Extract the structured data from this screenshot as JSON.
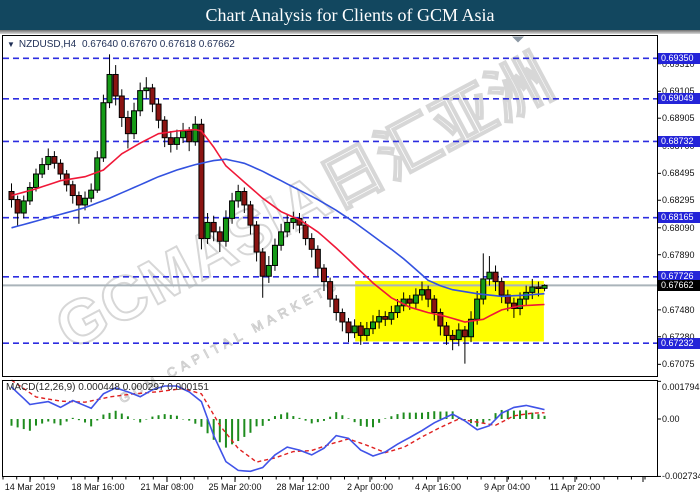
{
  "window": {
    "title": "Chart Analysis for Clients of GCM Asia"
  },
  "chart_header": {
    "collapse_icon": "▼",
    "symbol": "NZDUSD,H4",
    "ohlc": "0.67640 0.67670 0.67618 0.67662"
  },
  "watermark": {
    "big": "GCMASIA日汇亚洲",
    "small": "GCM CAPITAL MARKETS"
  },
  "macd_header": "MACD(12,26,9) 0.000448 0.000297 0.000151",
  "colors": {
    "title_bg": "#12475f",
    "up": "#169b17",
    "down": "#8b1412",
    "wick": "#000000",
    "ma_fast": "#f01838",
    "ma_slow": "#3352e0",
    "level_line": "#2d2de0",
    "level_label_bg": "#2424d8",
    "current_label_bg": "#000000",
    "current_line": "#aab4ba",
    "macd_line": "#4053e8",
    "macd_signal": "#e02020",
    "macd_hist": "#1e8c1e",
    "rectangle_fill": "#ffff00",
    "border": "#000000",
    "scroll_marker": "#8c98a4"
  },
  "chart_data": {
    "type": "candlestick",
    "symbol": "NZDUSD",
    "timeframe": "H4",
    "current_ohlc": {
      "open": 0.6764,
      "high": 0.6767,
      "low": 0.67618,
      "close": 0.67662
    },
    "price_axis_ticks": [
      0.6931,
      0.69105,
      0.68905,
      0.687,
      0.68495,
      0.68295,
      0.6809,
      0.6789,
      0.6748,
      0.6728,
      0.67075
    ],
    "level_lines": [
      0.6935,
      0.69049,
      0.68732,
      0.68165,
      0.67726,
      0.67232
    ],
    "current_price": 0.67662,
    "time_labels": [
      "14 Mar 2019",
      "18 Mar 16:00",
      "21 Mar 08:00",
      "25 Mar 20:00",
      "28 Mar 12:00",
      "2 Apr 00:00",
      "4 Apr 16:00",
      "9 Apr 04:00",
      "11 Apr 20:00"
    ],
    "rectangle": {
      "x_start_index": 56.5,
      "x_end_index": 87.3,
      "price_top": 0.67695,
      "price_bottom": 0.67245
    },
    "candles": [
      [
        0.6836,
        0.6842,
        0.6824,
        0.683
      ],
      [
        0.683,
        0.6833,
        0.681,
        0.682
      ],
      [
        0.682,
        0.6833,
        0.6816,
        0.6829
      ],
      [
        0.6829,
        0.6843,
        0.6826,
        0.6839
      ],
      [
        0.6839,
        0.6853,
        0.6836,
        0.6849
      ],
      [
        0.6849,
        0.6861,
        0.6846,
        0.6856
      ],
      [
        0.6856,
        0.6868,
        0.6852,
        0.6862
      ],
      [
        0.6862,
        0.6866,
        0.6853,
        0.6857
      ],
      [
        0.6857,
        0.686,
        0.6845,
        0.6849
      ],
      [
        0.6849,
        0.6852,
        0.6836,
        0.6841
      ],
      [
        0.6841,
        0.6844,
        0.6827,
        0.6833
      ],
      [
        0.6833,
        0.6836,
        0.6812,
        0.6826
      ],
      [
        0.6826,
        0.6836,
        0.6822,
        0.6831
      ],
      [
        0.6831,
        0.6842,
        0.6828,
        0.6837
      ],
      [
        0.6837,
        0.6866,
        0.6835,
        0.6861
      ],
      [
        0.6861,
        0.6908,
        0.6858,
        0.6902
      ],
      [
        0.6902,
        0.6938,
        0.6898,
        0.6923
      ],
      [
        0.6923,
        0.693,
        0.69,
        0.6907
      ],
      [
        0.6907,
        0.6912,
        0.6884,
        0.6891
      ],
      [
        0.6891,
        0.6896,
        0.6868,
        0.6879
      ],
      [
        0.6879,
        0.6902,
        0.6875,
        0.6896
      ],
      [
        0.6896,
        0.6917,
        0.6892,
        0.6911
      ],
      [
        0.6911,
        0.6921,
        0.6905,
        0.6913
      ],
      [
        0.6913,
        0.6916,
        0.6895,
        0.6901
      ],
      [
        0.6901,
        0.6905,
        0.6883,
        0.6889
      ],
      [
        0.6889,
        0.6892,
        0.6869,
        0.6876
      ],
      [
        0.6876,
        0.6881,
        0.6865,
        0.6871
      ],
      [
        0.6871,
        0.6882,
        0.6867,
        0.6876
      ],
      [
        0.6876,
        0.6887,
        0.6872,
        0.6881
      ],
      [
        0.6881,
        0.6884,
        0.6866,
        0.6873
      ],
      [
        0.6873,
        0.6892,
        0.687,
        0.6886
      ],
      [
        0.6886,
        0.689,
        0.6793,
        0.6801
      ],
      [
        0.6801,
        0.682,
        0.6797,
        0.6813
      ],
      [
        0.6813,
        0.6818,
        0.6799,
        0.6806
      ],
      [
        0.6806,
        0.681,
        0.6791,
        0.6799
      ],
      [
        0.6799,
        0.6822,
        0.6795,
        0.6816
      ],
      [
        0.6816,
        0.6835,
        0.6812,
        0.6829
      ],
      [
        0.6829,
        0.6841,
        0.6824,
        0.6836
      ],
      [
        0.6836,
        0.6839,
        0.682,
        0.6826
      ],
      [
        0.6826,
        0.6829,
        0.6804,
        0.6811
      ],
      [
        0.6811,
        0.6814,
        0.6784,
        0.6791
      ],
      [
        0.6791,
        0.6794,
        0.6757,
        0.6773
      ],
      [
        0.6773,
        0.6788,
        0.6768,
        0.6781
      ],
      [
        0.6781,
        0.6801,
        0.6777,
        0.6796
      ],
      [
        0.6796,
        0.6812,
        0.6792,
        0.6806
      ],
      [
        0.6806,
        0.6819,
        0.6802,
        0.6813
      ],
      [
        0.6813,
        0.6821,
        0.6808,
        0.6816
      ],
      [
        0.6816,
        0.682,
        0.6805,
        0.6811
      ],
      [
        0.6811,
        0.6814,
        0.6796,
        0.6801
      ],
      [
        0.6801,
        0.6805,
        0.6787,
        0.6793
      ],
      [
        0.6793,
        0.6796,
        0.6773,
        0.6779
      ],
      [
        0.6779,
        0.6782,
        0.6762,
        0.6769
      ],
      [
        0.6769,
        0.6772,
        0.675,
        0.6756
      ],
      [
        0.6756,
        0.6759,
        0.674,
        0.6746
      ],
      [
        0.6746,
        0.6749,
        0.6732,
        0.6739
      ],
      [
        0.6739,
        0.6742,
        0.6724,
        0.6731
      ],
      [
        0.6731,
        0.6741,
        0.6727,
        0.6736
      ],
      [
        0.6736,
        0.6739,
        0.6722,
        0.6729
      ],
      [
        0.6729,
        0.6739,
        0.6725,
        0.6734
      ],
      [
        0.6734,
        0.6744,
        0.673,
        0.6739
      ],
      [
        0.6739,
        0.6748,
        0.6734,
        0.6743
      ],
      [
        0.6743,
        0.6747,
        0.6736,
        0.6741
      ],
      [
        0.6741,
        0.6751,
        0.6737,
        0.6746
      ],
      [
        0.6746,
        0.6756,
        0.6742,
        0.6751
      ],
      [
        0.6751,
        0.6761,
        0.6747,
        0.6756
      ],
      [
        0.6756,
        0.6759,
        0.6748,
        0.6753
      ],
      [
        0.6753,
        0.6764,
        0.6749,
        0.6759
      ],
      [
        0.6759,
        0.6769,
        0.6755,
        0.6763
      ],
      [
        0.6763,
        0.6766,
        0.675,
        0.6756
      ],
      [
        0.6756,
        0.6759,
        0.674,
        0.6746
      ],
      [
        0.6746,
        0.6749,
        0.6729,
        0.6736
      ],
      [
        0.6736,
        0.6739,
        0.6722,
        0.6729
      ],
      [
        0.6729,
        0.6733,
        0.6718,
        0.6726
      ],
      [
        0.6726,
        0.6738,
        0.6721,
        0.6733
      ],
      [
        0.6733,
        0.6736,
        0.6708,
        0.6728
      ],
      [
        0.6728,
        0.6747,
        0.6724,
        0.6741
      ],
      [
        0.6741,
        0.6762,
        0.6737,
        0.6756
      ],
      [
        0.6756,
        0.679,
        0.6752,
        0.6771
      ],
      [
        0.6771,
        0.6788,
        0.6766,
        0.6776
      ],
      [
        0.6776,
        0.6781,
        0.6762,
        0.6769
      ],
      [
        0.6769,
        0.6772,
        0.6753,
        0.6759
      ],
      [
        0.6759,
        0.6763,
        0.6747,
        0.6753
      ],
      [
        0.6753,
        0.6757,
        0.6742,
        0.6749
      ],
      [
        0.6749,
        0.6761,
        0.6744,
        0.6756
      ],
      [
        0.6756,
        0.6766,
        0.6751,
        0.6761
      ],
      [
        0.6761,
        0.6771,
        0.6756,
        0.6765
      ],
      [
        0.6765,
        0.6769,
        0.6758,
        0.6764
      ],
      [
        0.6764,
        0.6767,
        0.67618,
        0.67662
      ]
    ],
    "ma_fast_points": [
      [
        0,
        0.6833
      ],
      [
        4,
        0.6838
      ],
      [
        8,
        0.6844
      ],
      [
        12,
        0.6847
      ],
      [
        15,
        0.6852
      ],
      [
        18,
        0.6864
      ],
      [
        21,
        0.6872
      ],
      [
        24,
        0.6879
      ],
      [
        27,
        0.6881
      ],
      [
        30,
        0.6882
      ],
      [
        31,
        0.6881
      ],
      [
        33,
        0.6869
      ],
      [
        35,
        0.6855
      ],
      [
        38,
        0.6843
      ],
      [
        41,
        0.6831
      ],
      [
        44,
        0.6821
      ],
      [
        47,
        0.6815
      ],
      [
        50,
        0.6806
      ],
      [
        53,
        0.6794
      ],
      [
        56,
        0.6781
      ],
      [
        59,
        0.6768
      ],
      [
        62,
        0.6757
      ],
      [
        65,
        0.675
      ],
      [
        68,
        0.6746
      ],
      [
        71,
        0.6743
      ],
      [
        74,
        0.6739
      ],
      [
        77,
        0.6741
      ],
      [
        80,
        0.6748
      ],
      [
        83,
        0.6751
      ],
      [
        87,
        0.6752
      ]
    ],
    "ma_slow_points": [
      [
        0,
        0.6809
      ],
      [
        4,
        0.6814
      ],
      [
        8,
        0.6819
      ],
      [
        12,
        0.6824
      ],
      [
        16,
        0.6831
      ],
      [
        20,
        0.6839
      ],
      [
        24,
        0.6847
      ],
      [
        27,
        0.6852
      ],
      [
        30,
        0.6856
      ],
      [
        33,
        0.6859
      ],
      [
        35,
        0.686
      ],
      [
        38,
        0.6857
      ],
      [
        41,
        0.6851
      ],
      [
        44,
        0.6844
      ],
      [
        47,
        0.6837
      ],
      [
        50,
        0.683
      ],
      [
        53,
        0.6822
      ],
      [
        56,
        0.6813
      ],
      [
        59,
        0.6803
      ],
      [
        62,
        0.6793
      ],
      [
        64,
        0.6786
      ],
      [
        66,
        0.6778
      ],
      [
        68,
        0.677
      ],
      [
        70,
        0.6766
      ],
      [
        72,
        0.6763
      ],
      [
        76,
        0.676
      ],
      [
        80,
        0.6758
      ],
      [
        84,
        0.6759
      ],
      [
        87,
        0.676
      ]
    ],
    "macd": {
      "params": "12,26,9",
      "display_values": [
        0.000448,
        0.000297,
        0.000151
      ],
      "axis_ticks": [
        {
          "v": 0.001794,
          "label": "0.001794"
        },
        {
          "v": 0,
          "label": "0.00"
        },
        {
          "v": -0.002734,
          "label": "-0.002734"
        }
      ],
      "line_points": [
        [
          0,
          0.00153
        ],
        [
          3,
          0.00069
        ],
        [
          6,
          0.00083
        ],
        [
          8,
          0.00055
        ],
        [
          10,
          0.00088
        ],
        [
          13,
          0.00051
        ],
        [
          15,
          0.0012
        ],
        [
          17,
          0.00148
        ],
        [
          19,
          0.00129
        ],
        [
          21,
          0.00106
        ],
        [
          23,
          0.00139
        ],
        [
          25,
          0.00157
        ],
        [
          27,
          0.00157
        ],
        [
          29,
          0.00129
        ],
        [
          31,
          0.00083
        ],
        [
          33,
          -0.00079
        ],
        [
          35,
          -0.00203
        ],
        [
          37,
          -0.00245
        ],
        [
          39,
          -0.00249
        ],
        [
          41,
          -0.00231
        ],
        [
          43,
          -0.00171
        ],
        [
          45,
          -0.00134
        ],
        [
          47,
          -0.00148
        ],
        [
          49,
          -0.00171
        ],
        [
          51,
          -0.00139
        ],
        [
          53,
          -0.00079
        ],
        [
          55,
          -0.00092
        ],
        [
          57,
          -0.00148
        ],
        [
          59,
          -0.00176
        ],
        [
          61,
          -0.00157
        ],
        [
          63,
          -0.0012
        ],
        [
          65,
          -0.00088
        ],
        [
          67,
          -0.00055
        ],
        [
          69,
          -0.00018
        ],
        [
          71,
          9e-05
        ],
        [
          72,
          0.00023
        ],
        [
          74,
          -9e-05
        ],
        [
          76,
          -0.00051
        ],
        [
          78,
          -0.00032
        ],
        [
          80,
          0.00028
        ],
        [
          82,
          0.00055
        ],
        [
          84,
          0.00065
        ],
        [
          87,
          0.000448
        ]
      ],
      "signal_points": [
        [
          0,
          0.00185
        ],
        [
          4,
          0.00105
        ],
        [
          8,
          0.00085
        ],
        [
          12,
          0.0008
        ],
        [
          16,
          0.00105
        ],
        [
          20,
          0.0012
        ],
        [
          24,
          0.0013
        ],
        [
          28,
          0.00145
        ],
        [
          31,
          0.0012
        ],
        [
          34,
          -0.0003
        ],
        [
          37,
          -0.0014
        ],
        [
          40,
          -0.00205
        ],
        [
          43,
          -0.00185
        ],
        [
          46,
          -0.00155
        ],
        [
          49,
          -0.0015
        ],
        [
          52,
          -0.0012
        ],
        [
          55,
          -0.00095
        ],
        [
          58,
          -0.00125
        ],
        [
          61,
          -0.0016
        ],
        [
          64,
          -0.00135
        ],
        [
          67,
          -0.00085
        ],
        [
          70,
          -0.0004
        ],
        [
          73,
          0.0
        ],
        [
          76,
          -0.00015
        ],
        [
          79,
          -0.0003
        ],
        [
          82,
          0.00015
        ],
        [
          85,
          0.00028
        ],
        [
          87,
          0.000297
        ]
      ]
    }
  }
}
